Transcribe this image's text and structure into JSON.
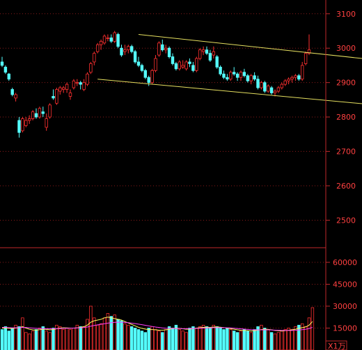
{
  "scale_tag": "X1万",
  "colors": {
    "up": "#ff3030",
    "down": "#54ffff",
    "channel": "#e6e060",
    "ma_volume_1": "#ffff60",
    "ma_volume_2": "#ff40ff",
    "axis": "#c0282a",
    "background": "#000000"
  },
  "chart_data": [
    {
      "type": "candlestick",
      "title": "",
      "ylim": [
        2420,
        3140
      ],
      "y_ticks": [
        "3100",
        "3000",
        "2900",
        "2800",
        "2700",
        "2600",
        "2500"
      ],
      "grid": true,
      "series": [
        {
          "values": [
            [
              2960,
              2975,
              2945,
              2950
            ],
            [
              2945,
              2950,
              2925,
              2930
            ],
            [
              2925,
              2928,
              2905,
              2910
            ],
            [
              2880,
              2885,
              2860,
              2865
            ],
            [
              2855,
              2870,
              2845,
              2865
            ],
            [
              2790,
              2800,
              2740,
              2755
            ],
            [
              2760,
              2800,
              2755,
              2795
            ],
            [
              2775,
              2800,
              2770,
              2790
            ],
            [
              2790,
              2805,
              2780,
              2795
            ],
            [
              2795,
              2820,
              2790,
              2815
            ],
            [
              2810,
              2825,
              2795,
              2800
            ],
            [
              2800,
              2830,
              2795,
              2825
            ],
            [
              2815,
              2830,
              2800,
              2810
            ],
            [
              2770,
              2810,
              2760,
              2795
            ],
            [
              2800,
              2840,
              2795,
              2835
            ],
            [
              2860,
              2880,
              2850,
              2855
            ],
            [
              2840,
              2885,
              2835,
              2880
            ],
            [
              2875,
              2890,
              2865,
              2885
            ],
            [
              2880,
              2890,
              2870,
              2885
            ],
            [
              2880,
              2900,
              2870,
              2895
            ],
            [
              2860,
              2880,
              2850,
              2870
            ],
            [
              2885,
              2910,
              2880,
              2905
            ],
            [
              2900,
              2910,
              2890,
              2900
            ],
            [
              2900,
              2905,
              2880,
              2895
            ],
            [
              2880,
              2910,
              2875,
              2900
            ],
            [
              2895,
              2930,
              2890,
              2925
            ],
            [
              2930,
              2960,
              2925,
              2955
            ],
            [
              2960,
              2990,
              2950,
              2985
            ],
            [
              2990,
              3015,
              2985,
              3010
            ],
            [
              3010,
              3025,
              2995,
              3020
            ],
            [
              3015,
              3040,
              3010,
              3035
            ],
            [
              3030,
              3040,
              3020,
              3030
            ],
            [
              3030,
              3040,
              3015,
              3020
            ],
            [
              3020,
              3050,
              3015,
              3045
            ],
            [
              3040,
              3045,
              3000,
              3005
            ],
            [
              3000,
              3010,
              2975,
              2980
            ],
            [
              2990,
              3010,
              2980,
              2995
            ],
            [
              2995,
              3010,
              2985,
              3005
            ],
            [
              3005,
              3010,
              2985,
              2990
            ],
            [
              2990,
              2995,
              2955,
              2960
            ],
            [
              2960,
              2975,
              2945,
              2950
            ],
            [
              2950,
              2955,
              2930,
              2935
            ],
            [
              2935,
              2940,
              2910,
              2915
            ],
            [
              2915,
              2920,
              2890,
              2900
            ],
            [
              2900,
              2940,
              2895,
              2935
            ],
            [
              2935,
              2980,
              2930,
              2970
            ],
            [
              2980,
              3020,
              2975,
              3015
            ],
            [
              3010,
              3025,
              2990,
              2995
            ],
            [
              2995,
              3010,
              2985,
              3000
            ],
            [
              3000,
              3005,
              2970,
              2975
            ],
            [
              2975,
              2985,
              2950,
              2955
            ],
            [
              2955,
              2960,
              2935,
              2940
            ],
            [
              2940,
              2965,
              2935,
              2960
            ],
            [
              2945,
              2965,
              2940,
              2950
            ],
            [
              2940,
              2965,
              2935,
              2960
            ],
            [
              2960,
              2970,
              2945,
              2955
            ],
            [
              2950,
              2960,
              2930,
              2935
            ],
            [
              2935,
              2975,
              2930,
              2970
            ],
            [
              2970,
              3000,
              2965,
              2995
            ],
            [
              2990,
              3005,
              2980,
              2995
            ],
            [
              2995,
              3005,
              2980,
              2985
            ],
            [
              2985,
              2995,
              2960,
              2965
            ],
            [
              2980,
              3005,
              2970,
              2990
            ],
            [
              2975,
              2980,
              2940,
              2945
            ],
            [
              2945,
              2950,
              2920,
              2925
            ],
            [
              2925,
              2935,
              2910,
              2915
            ],
            [
              2915,
              2925,
              2905,
              2910
            ],
            [
              2910,
              2935,
              2905,
              2930
            ],
            [
              2930,
              2945,
              2920,
              2925
            ],
            [
              2925,
              2930,
              2905,
              2915
            ],
            [
              2915,
              2935,
              2905,
              2930
            ],
            [
              2930,
              2940,
              2915,
              2920
            ],
            [
              2920,
              2925,
              2900,
              2905
            ],
            [
              2905,
              2925,
              2895,
              2920
            ],
            [
              2920,
              2930,
              2905,
              2910
            ],
            [
              2910,
              2920,
              2880,
              2885
            ],
            [
              2885,
              2905,
              2880,
              2900
            ],
            [
              2900,
              2905,
              2870,
              2875
            ],
            [
              2875,
              2895,
              2870,
              2890
            ],
            [
              2885,
              2890,
              2865,
              2870
            ],
            [
              2870,
              2880,
              2860,
              2875
            ],
            [
              2875,
              2890,
              2870,
              2885
            ],
            [
              2885,
              2900,
              2880,
              2895
            ],
            [
              2895,
              2910,
              2890,
              2905
            ],
            [
              2905,
              2915,
              2895,
              2910
            ],
            [
              2910,
              2920,
              2900,
              2915
            ],
            [
              2915,
              2925,
              2905,
              2920
            ],
            [
              2920,
              2925,
              2905,
              2910
            ],
            [
              2910,
              2960,
              2905,
              2950
            ],
            [
              2955,
              2990,
              2950,
              2985
            ],
            [
              2985,
              3040,
              2980,
              2995
            ]
          ]
        }
      ],
      "channel_lines": [
        {
          "from": [
            40,
            3040
          ],
          "to": [
            115,
            2960
          ]
        },
        {
          "from": [
            28,
            2910
          ],
          "to": [
            115,
            2830
          ]
        }
      ]
    },
    {
      "type": "bar",
      "title": "",
      "ylim": [
        0,
        70000
      ],
      "y_ticks": [
        "60000",
        "45000",
        "30000",
        "15000"
      ],
      "grid": true,
      "series": [
        {
          "values": [
            14000,
            16000,
            13000,
            15000,
            17000,
            16000,
            22000,
            12000,
            11000,
            13000,
            14000,
            15000,
            16000,
            13000,
            12000,
            15000,
            17000,
            16000,
            14000,
            15000,
            14000,
            15000,
            17000,
            16000,
            16000,
            21000,
            30000,
            22000,
            17000,
            18000,
            22000,
            25000,
            23000,
            24000,
            21000,
            20000,
            18000,
            17000,
            16000,
            15000,
            14000,
            13000,
            12000,
            15000,
            16000,
            14000,
            13000,
            12000,
            14000,
            16000,
            15000,
            17000,
            14000,
            13000,
            12000,
            15000,
            16000,
            15000,
            16000,
            17000,
            16000,
            15000,
            17000,
            16000,
            15000,
            14000,
            15000,
            14000,
            13000,
            12000,
            13000,
            14000,
            13000,
            12000,
            14000,
            16000,
            17000,
            15000,
            14000,
            12000,
            11000,
            12000,
            13000,
            14000,
            15000,
            14000,
            16000,
            17000,
            18000,
            16000,
            22000,
            29000
          ]
        },
        {
          "name": "",
          "values": [
            15000,
            15000,
            14800,
            14700,
            15000,
            15200,
            16000,
            15000,
            14200,
            13800,
            13600,
            13900,
            14200,
            14100,
            13800,
            14000,
            14500,
            15000,
            15200,
            15100,
            15000,
            15000,
            15200,
            15500,
            16000,
            17000,
            19000,
            20000,
            20500,
            21000,
            22000,
            22500,
            22000,
            21500,
            21000,
            20500,
            19500,
            18500,
            17500,
            16500,
            15500,
            14800,
            14300,
            14000,
            14000,
            13800,
            13600,
            13500,
            13800,
            14200,
            14600,
            15000,
            14800,
            14500,
            14200,
            14300,
            14600,
            15000,
            15300,
            15500,
            15600,
            15500,
            15700,
            15800,
            15600,
            15300,
            15000,
            14600,
            14200,
            13800,
            13500,
            13400,
            13200,
            13000,
            13200,
            13600,
            14000,
            14200,
            14100,
            13800,
            13400,
            13200,
            13000,
            13200,
            13500,
            13800,
            14200,
            14800,
            15300,
            15800,
            17000,
            19500
          ]
        },
        {
          "name": "",
          "values": [
            15500,
            15400,
            15300,
            15200,
            15200,
            15300,
            15500,
            15400,
            15200,
            15000,
            14800,
            14700,
            14600,
            14600,
            14500,
            14500,
            14600,
            14700,
            14800,
            14900,
            14900,
            15000,
            15100,
            15200,
            15400,
            15700,
            16300,
            16800,
            17200,
            17600,
            18000,
            18400,
            18700,
            18900,
            19000,
            19000,
            18900,
            18700,
            18400,
            18100,
            17700,
            17300,
            16900,
            16500,
            16100,
            15700,
            15400,
            15100,
            14900,
            14800,
            14700,
            14700,
            14700,
            14600,
            14600,
            14600,
            14700,
            14800,
            14900,
            15000,
            15100,
            15200,
            15300,
            15300,
            15300,
            15300,
            15200,
            15100,
            14900,
            14700,
            14500,
            14300,
            14100,
            13900,
            13800,
            13800,
            13800,
            13800,
            13800,
            13700,
            13600,
            13500,
            13400,
            13400,
            13400,
            13400,
            13500,
            13700,
            13900,
            14200,
            14700,
            15500
          ]
        }
      ]
    }
  ]
}
